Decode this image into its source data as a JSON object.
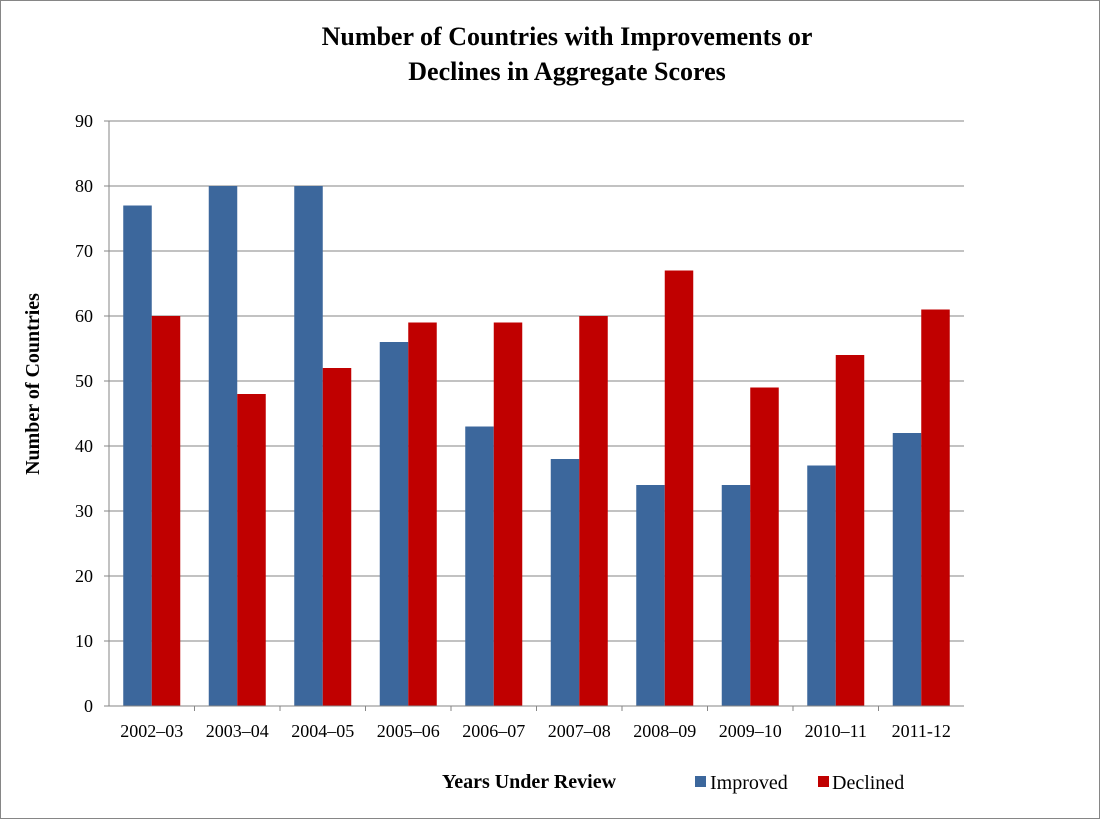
{
  "chart_data": {
    "type": "bar",
    "title_lines": [
      "Number of Countries with Improvements  or",
      "Declines in Aggregate Scores"
    ],
    "xlabel": "Years Under Review",
    "ylabel": "Number of Countries",
    "categories": [
      "2002–03",
      "2003–04",
      "2004–05",
      "2005–06",
      "2006–07",
      "2007–08",
      "2008–09",
      "2009–10",
      "2010–11",
      "2011-12"
    ],
    "series": [
      {
        "name": "Improved",
        "color": "#3C679C",
        "values": [
          77,
          80,
          80,
          56,
          43,
          38,
          34,
          34,
          37,
          42
        ]
      },
      {
        "name": "Declined",
        "color": "#C00000",
        "values": [
          60,
          48,
          52,
          59,
          59,
          60,
          67,
          49,
          54,
          61
        ]
      }
    ],
    "ylim": [
      0,
      90
    ],
    "yticks": [
      0,
      10,
      20,
      30,
      40,
      50,
      60,
      70,
      80,
      90
    ],
    "grid": true,
    "legend_position": "bottom"
  }
}
